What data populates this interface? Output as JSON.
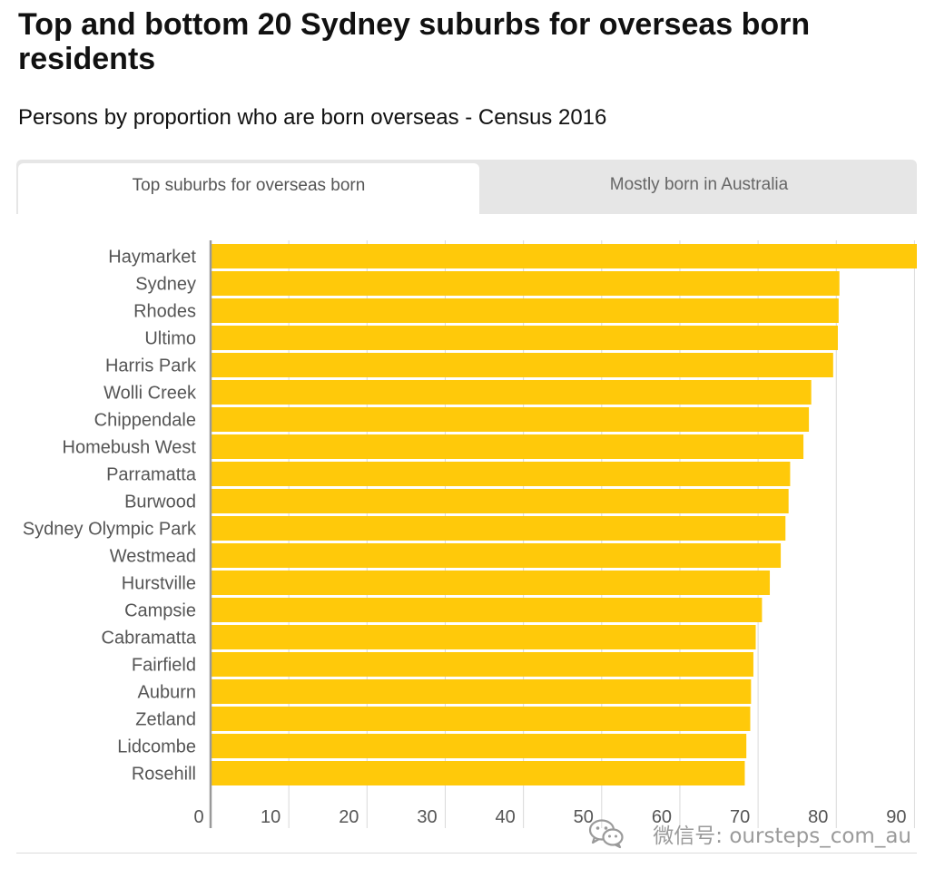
{
  "header": {
    "title": "Top and bottom 20 Sydney suburbs for overseas born residents",
    "subtitle": "Persons by proportion who are born overseas - Census 2016"
  },
  "tabs": [
    {
      "label": "Top suburbs for overseas born",
      "active": true
    },
    {
      "label": "Mostly born in Australia",
      "active": false
    }
  ],
  "watermark": {
    "icon": "wechat-icon",
    "text": "微信号: oursteps_com_au"
  },
  "colors": {
    "bar": "#ffc90a",
    "axis": "#999999",
    "grid": "#d9d9d9",
    "label": "#555555"
  },
  "chart_data": {
    "type": "bar",
    "orientation": "horizontal",
    "categories": [
      "Haymarket",
      "Sydney",
      "Rhodes",
      "Ultimo",
      "Harris Park",
      "Wolli Creek",
      "Chippendale",
      "Homebush West",
      "Parramatta",
      "Burwood",
      "Sydney Olympic Park",
      "Westmead",
      "Hurstville",
      "Campsie",
      "Cabramatta",
      "Fairfield",
      "Auburn",
      "Zetland",
      "Lidcombe",
      "Rosehill"
    ],
    "values": [
      90.3,
      80.4,
      80.3,
      80.2,
      79.6,
      76.8,
      76.5,
      75.8,
      74.1,
      73.9,
      73.5,
      72.9,
      71.5,
      70.5,
      69.7,
      69.4,
      69.1,
      69.0,
      68.5,
      68.3
    ],
    "xticks": [
      0,
      10,
      20,
      30,
      40,
      50,
      60,
      70,
      80,
      90
    ],
    "xlim": [
      0,
      90.3
    ],
    "grid": true
  }
}
